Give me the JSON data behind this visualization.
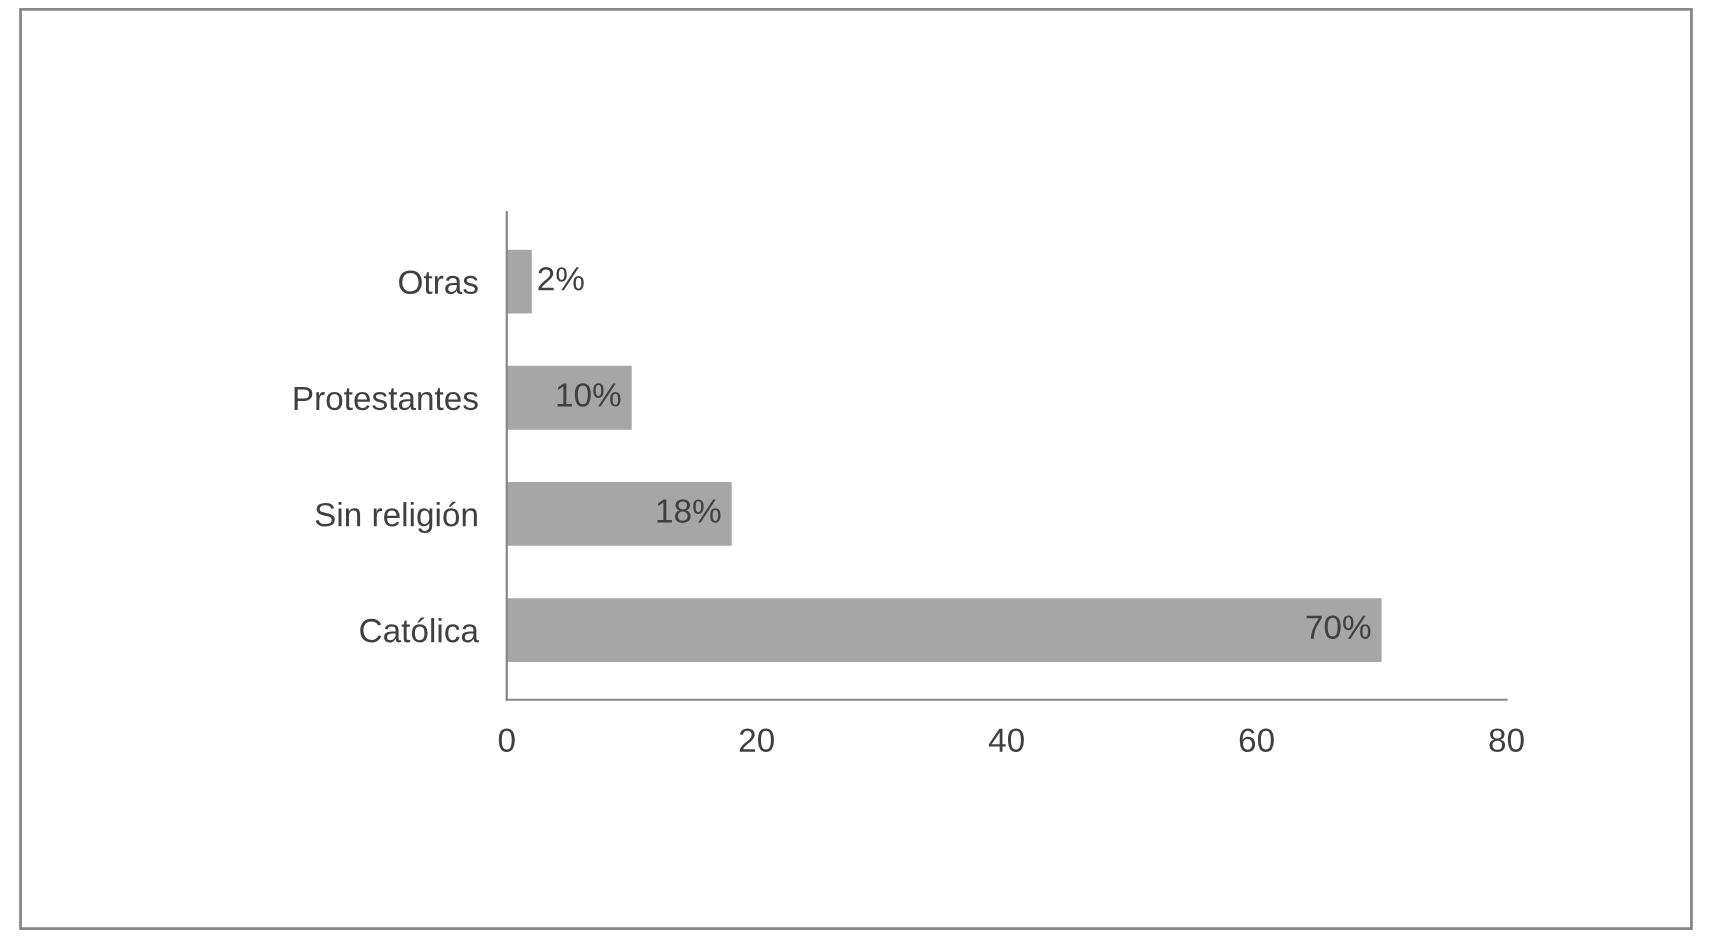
{
  "chart_data": {
    "type": "bar",
    "orientation": "horizontal",
    "categories": [
      "Otras",
      "Protestantes",
      "Sin religión",
      "Católica"
    ],
    "values": [
      2,
      10,
      18,
      70
    ],
    "value_labels": [
      "2%",
      "10%",
      "18%",
      "70%"
    ],
    "color": "#a6a6a6",
    "xlim": [
      0,
      80
    ],
    "xticks": [
      0,
      20,
      40,
      60,
      80
    ],
    "grid": false,
    "legend": false
  }
}
